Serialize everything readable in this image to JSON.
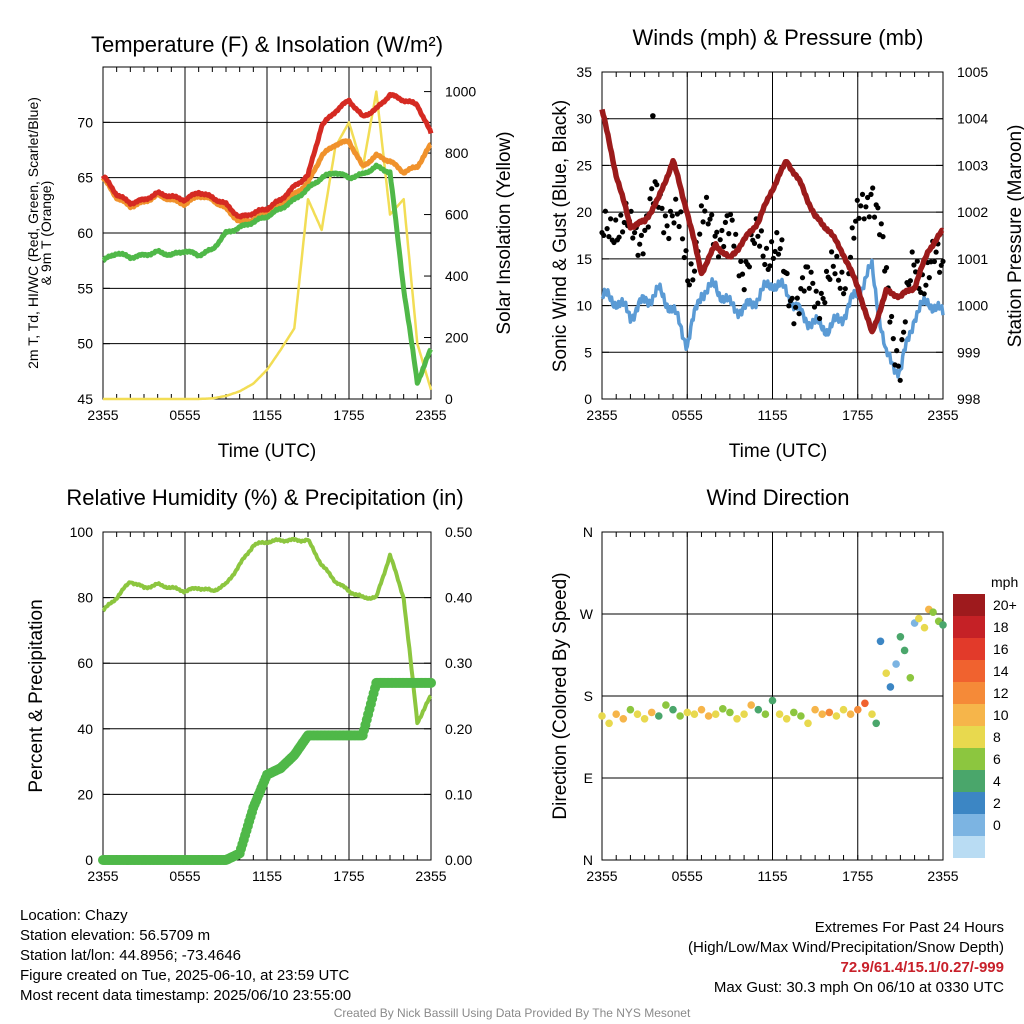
{
  "chart_data": [
    {
      "type": "line",
      "title": "Temperature (F) & Insolation (W/m²)",
      "xlabel": "Time (UTC)",
      "ylabel_left_lines": [
        "2m T, Td, HI/WC (Red, Green, Scarlet/Blue)",
        "& 9m T (Orange)"
      ],
      "ylabel_right": "Solar Insolation (Yellow)",
      "x_ticks": [
        "2355",
        "0555",
        "1155",
        "1755",
        "2355"
      ],
      "hours": [
        0,
        1,
        2,
        3,
        4,
        5,
        6,
        7,
        8,
        9,
        10,
        11,
        12,
        13,
        14,
        15,
        16,
        17,
        18,
        19,
        20,
        21,
        22,
        23,
        24
      ],
      "ylim_left": [
        45,
        75
      ],
      "yticks_left": [
        45,
        50,
        55,
        60,
        65,
        70
      ],
      "ylim_right": [
        0,
        1080
      ],
      "yticks_right": [
        0,
        200,
        400,
        600,
        800,
        1000
      ],
      "series": [
        {
          "name": "2m T",
          "color": "#d52a22",
          "values": [
            65.2,
            63.5,
            62.7,
            63.0,
            63.6,
            63.3,
            63.0,
            63.7,
            63.2,
            62.6,
            61.4,
            61.8,
            62.2,
            63.0,
            64.2,
            65.2,
            69.7,
            71.0,
            72.0,
            70.5,
            71.2,
            72.5,
            72.0,
            71.6,
            69.0
          ]
        },
        {
          "name": "9m T",
          "color": "#f0922c",
          "values": [
            65.0,
            63.2,
            62.4,
            62.8,
            63.4,
            63.0,
            62.6,
            63.4,
            63.0,
            62.2,
            61.0,
            61.2,
            61.8,
            62.6,
            63.5,
            64.5,
            67.0,
            68.0,
            68.3,
            66.0,
            67.0,
            66.5,
            65.5,
            66.0,
            68.0
          ]
        },
        {
          "name": "2m Td",
          "color": "#4fb848",
          "values": [
            57.5,
            58.2,
            57.8,
            58.0,
            58.3,
            58.0,
            58.4,
            58.0,
            58.5,
            60.0,
            60.5,
            61.0,
            61.5,
            62.2,
            63.0,
            64.0,
            65.0,
            65.5,
            65.0,
            65.3,
            66.0,
            65.5,
            55.0,
            46.5,
            49.5
          ]
        },
        {
          "name": "Solar Insolation",
          "color": "#f2dd55",
          "axis": "right",
          "values": [
            0,
            0,
            0,
            0,
            0,
            0,
            0,
            0,
            2,
            10,
            25,
            50,
            95,
            160,
            230,
            650,
            550,
            820,
            900,
            750,
            1000,
            600,
            650,
            180,
            30
          ]
        }
      ]
    },
    {
      "type": "line",
      "title": "Winds (mph) & Pressure (mb)",
      "xlabel": "Time (UTC)",
      "ylabel_left": "Sonic Wind & Gust (Blue, Black)",
      "ylabel_right": "Station Pressure (Maroon)",
      "x_ticks": [
        "2355",
        "0555",
        "1155",
        "1755",
        "2355"
      ],
      "ylim_left": [
        0,
        35
      ],
      "yticks_left": [
        0,
        5,
        10,
        15,
        20,
        25,
        30,
        35
      ],
      "ylim_right": [
        998,
        1005
      ],
      "yticks_right": [
        998,
        999,
        1000,
        1001,
        1002,
        1003,
        1004,
        1005
      ],
      "hours": [
        0,
        1,
        2,
        3,
        4,
        5,
        6,
        7,
        8,
        9,
        10,
        11,
        12,
        13,
        14,
        15,
        16,
        17,
        18,
        19,
        20,
        21,
        22,
        23,
        24
      ],
      "series": [
        {
          "name": "Sonic Wind",
          "color": "#5b9bd5",
          "values": [
            11.0,
            10.5,
            9.0,
            10.5,
            11.5,
            9.5,
            6.0,
            11.5,
            12.0,
            10.0,
            9.5,
            11.0,
            12.5,
            11.5,
            9.0,
            8.0,
            7.5,
            9.0,
            11.5,
            14.0,
            4.5,
            3.0,
            9.0,
            10.5,
            9.0
          ]
        },
        {
          "name": "Gust",
          "color": "#000000",
          "values": [
            16,
            20,
            17,
            19,
            21,
            20,
            14,
            18,
            19,
            17,
            15,
            16,
            17,
            12,
            11,
            12,
            12,
            14,
            18,
            24,
            12,
            4,
            15,
            13,
            15
          ]
        },
        {
          "name": "Station Pressure",
          "color": "#9b1b1b",
          "axis": "right",
          "values": [
            1004.2,
            1002.8,
            1001.7,
            1001.8,
            1002.3,
            1003.1,
            1002.0,
            1000.7,
            1001.3,
            1001.0,
            1001.4,
            1001.8,
            1002.5,
            1003.1,
            1002.6,
            1001.9,
            1001.6,
            1001.1,
            1000.4,
            999.4,
            1000.3,
            1000.2,
            1000.4,
            1001.2,
            1001.6
          ]
        }
      ],
      "max_gust_point": {
        "hour": 3.58,
        "value": 30.3
      }
    },
    {
      "type": "line",
      "title": "Relative Humidity (%) & Precipitation (in)",
      "ylabel_left": "Percent & Precipitation",
      "x_ticks": [
        "2355",
        "0555",
        "1155",
        "1755",
        "2355"
      ],
      "ylim_left": [
        0,
        100
      ],
      "yticks_left": [
        0,
        20,
        40,
        60,
        80,
        100
      ],
      "ylim_right": [
        0,
        0.5
      ],
      "yticks_right": [
        "0.00",
        "0.10",
        "0.20",
        "0.30",
        "0.40",
        "0.50"
      ],
      "hours": [
        0,
        1,
        2,
        3,
        4,
        5,
        6,
        7,
        8,
        9,
        10,
        11,
        12,
        13,
        14,
        15,
        16,
        17,
        18,
        19,
        20,
        21,
        22,
        23,
        24
      ],
      "series": [
        {
          "name": "Relative Humidity",
          "color": "#8cc63f",
          "values": [
            76,
            80,
            85,
            83,
            84,
            83,
            82,
            83,
            82,
            84,
            90,
            96,
            97,
            97.5,
            97.5,
            97.5,
            90,
            85,
            82,
            80,
            80,
            93,
            80,
            42,
            50
          ]
        },
        {
          "name": "Precipitation",
          "color": "#4fb848",
          "axis": "right",
          "values": [
            0,
            0,
            0,
            0,
            0,
            0,
            0,
            0,
            0,
            0,
            0.01,
            0.08,
            0.13,
            0.14,
            0.16,
            0.19,
            0.19,
            0.19,
            0.19,
            0.19,
            0.27,
            0.27,
            0.27,
            0.27,
            0.27
          ]
        }
      ]
    },
    {
      "type": "scatter",
      "title": "Wind Direction",
      "ylabel_left": "Direction (Colored By Speed)",
      "x_ticks": [
        "2355",
        "0555",
        "1155",
        "1755",
        "2355"
      ],
      "y_ticks": [
        "N",
        "E",
        "S",
        "W",
        "N"
      ],
      "ylim": [
        0,
        360
      ],
      "colorbar": {
        "title": "mph",
        "labels": [
          "20+",
          "18",
          "16",
          "14",
          "12",
          "10",
          "8",
          "6",
          "4",
          "2",
          "0"
        ],
        "colors": [
          "#9e1a1d",
          "#c52126",
          "#e23a2a",
          "#f0622f",
          "#f58a38",
          "#f6b54a",
          "#e8d94e",
          "#8cc63f",
          "#4aa66b",
          "#3c86c4",
          "#7cb4e2",
          "#b9dcf3"
        ]
      },
      "points_hour": [
        0,
        0.5,
        1,
        1.5,
        2,
        2.5,
        3,
        3.5,
        4,
        4.5,
        5,
        5.5,
        6,
        6.5,
        7,
        7.5,
        8,
        8.5,
        9,
        9.5,
        10,
        10.5,
        11,
        11.5,
        12,
        12.5,
        13,
        13.5,
        14,
        14.5,
        15,
        15.5,
        16,
        16.5,
        17,
        17.5,
        18,
        18.5,
        19,
        19.3,
        19.6,
        20,
        20.3,
        20.7,
        21,
        21.3,
        21.7,
        22,
        22.3,
        22.7,
        23,
        23.3,
        23.7,
        24
      ],
      "points_dir": [
        158,
        150,
        160,
        155,
        165,
        160,
        155,
        162,
        158,
        170,
        165,
        158,
        162,
        160,
        165,
        158,
        160,
        166,
        162,
        155,
        160,
        170,
        165,
        160,
        175,
        160,
        155,
        162,
        158,
        150,
        165,
        160,
        162,
        158,
        165,
        160,
        165,
        172,
        160,
        150,
        240,
        205,
        190,
        215,
        245,
        230,
        200,
        260,
        265,
        255,
        275,
        272,
        262,
        258
      ],
      "points_speed": [
        9,
        10,
        11,
        12,
        8,
        9,
        10,
        11,
        6,
        7,
        5,
        8,
        9,
        10,
        11,
        12,
        9,
        8,
        7,
        9,
        10,
        11,
        6,
        8,
        5,
        9,
        10,
        7,
        8,
        9,
        12,
        11,
        13,
        10,
        9,
        12,
        14,
        16,
        10,
        6,
        4,
        9,
        3,
        2,
        5,
        6,
        8,
        2,
        9,
        10,
        11,
        8,
        7,
        6
      ]
    }
  ],
  "info": {
    "location": "Location: Chazy",
    "elevation": "Station elevation: 56.5709 m",
    "latlon": "Station lat/lon: 44.8956; -73.4646",
    "created": "Figure created on Tue, 2025-06-10, at 23:59 UTC",
    "recent": "Most recent data timestamp: 2025/06/10 23:55:00",
    "extremes_title": "Extremes For Past 24 Hours",
    "extremes_legend": "(High/Low/Max Wind/Precipitation/Snow Depth)",
    "extremes_values": "72.9/61.4/15.1/0.27/-999",
    "max_gust": "Max Gust: 30.3 mph On 06/10 at 0330 UTC",
    "credit": "Created By Nick Bassill Using Data Provided By The NYS Mesonet"
  }
}
